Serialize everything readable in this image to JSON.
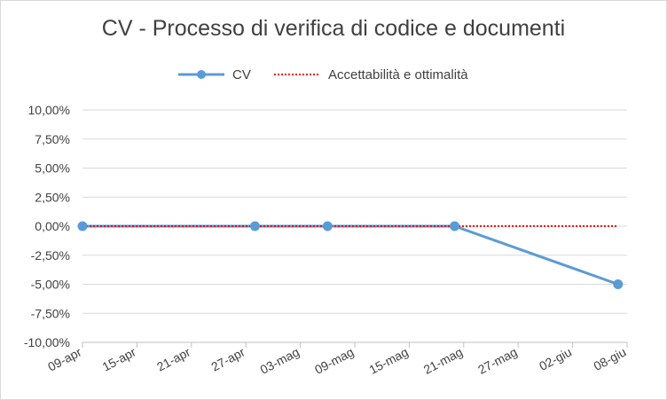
{
  "chart_data": {
    "type": "line",
    "title": "CV - Processo di verifica di codice e documenti",
    "xlabel": "",
    "ylabel": "",
    "x_tick_labels": [
      "09-apr",
      "15-apr",
      "21-apr",
      "27-apr",
      "03-mag",
      "09-mag",
      "15-mag",
      "21-mag",
      "27-mag",
      "02-giu",
      "08-giu"
    ],
    "y_tick_labels": [
      "10,00%",
      "7,50%",
      "5,00%",
      "2,50%",
      "0,00%",
      "-2,50%",
      "-5,00%",
      "-7,50%",
      "-10,00%"
    ],
    "ylim": [
      -0.1,
      0.1
    ],
    "xlim": [
      "2018-04-09",
      "2018-06-08"
    ],
    "grid": true,
    "legend_position": "top",
    "series": [
      {
        "name": "CV",
        "style": "solid line with circle markers",
        "color": "#5b9bd5",
        "points": [
          {
            "x": "2018-04-09",
            "y": 0.0
          },
          {
            "x": "2018-04-28",
            "y": 0.0
          },
          {
            "x": "2018-05-06",
            "y": 0.0
          },
          {
            "x": "2018-05-20",
            "y": 0.0
          },
          {
            "x": "2018-06-07",
            "y": -0.05
          }
        ]
      },
      {
        "name": "Accettabilità e ottimalità",
        "style": "dotted line",
        "color": "#ff0000",
        "points": [
          {
            "x": "2018-04-09",
            "y": 0.0
          },
          {
            "x": "2018-06-07",
            "y": 0.0
          }
        ]
      }
    ]
  }
}
